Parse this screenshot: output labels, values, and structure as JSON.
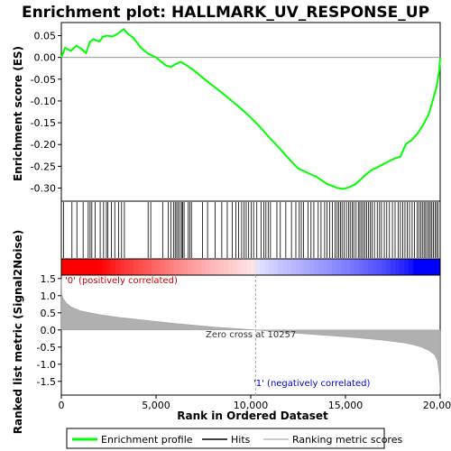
{
  "chart_data": {
    "type": "line",
    "title": "Enrichment plot: HALLMARK_UV_RESPONSE_UP",
    "xlabel": "Rank in Ordered Dataset",
    "xlim": [
      0,
      20000
    ],
    "x_ticks": [
      0,
      5000,
      10000,
      15000,
      20000
    ],
    "x_tick_labels": [
      "0",
      "5,000",
      "10,000",
      "15,000",
      "20,000"
    ],
    "top_panel": {
      "ylabel": "Enrichment score (ES)",
      "ylim": [
        -0.33,
        0.08
      ],
      "y_ticks": [
        0.05,
        0.0,
        -0.05,
        -0.1,
        -0.15,
        -0.2,
        -0.25,
        -0.3
      ],
      "y_tick_labels": [
        "0.05",
        "0.00",
        "-0.05",
        "-0.10",
        "-0.15",
        "-0.20",
        "-0.25",
        "-0.30"
      ],
      "series": [
        {
          "name": "Enrichment profile",
          "color": "#00ff00",
          "x": [
            0,
            200,
            500,
            800,
            1100,
            1300,
            1500,
            1700,
            2000,
            2200,
            2400,
            2700,
            3000,
            3300,
            3500,
            3800,
            4200,
            4600,
            5000,
            5500,
            5800,
            6000,
            6300,
            6600,
            7000,
            7500,
            8000,
            8500,
            9000,
            9500,
            10000,
            10500,
            11000,
            11500,
            12000,
            12500,
            13000,
            13500,
            14000,
            14300,
            14600,
            14900,
            15200,
            15500,
            15800,
            16100,
            16400,
            16700,
            17000,
            17300,
            17600,
            17900,
            18200,
            18500,
            18800,
            19100,
            19400,
            19600,
            19800,
            19950,
            20000
          ],
          "y": [
            0.0,
            0.022,
            0.015,
            0.027,
            0.018,
            0.01,
            0.035,
            0.042,
            0.036,
            0.047,
            0.05,
            0.048,
            0.055,
            0.065,
            0.055,
            0.045,
            0.022,
            0.008,
            0.0,
            -0.018,
            -0.022,
            -0.016,
            -0.01,
            -0.018,
            -0.03,
            -0.048,
            -0.065,
            -0.082,
            -0.1,
            -0.118,
            -0.138,
            -0.16,
            -0.185,
            -0.208,
            -0.232,
            -0.255,
            -0.265,
            -0.275,
            -0.29,
            -0.295,
            -0.3,
            -0.302,
            -0.298,
            -0.292,
            -0.28,
            -0.268,
            -0.258,
            -0.252,
            -0.245,
            -0.238,
            -0.232,
            -0.228,
            -0.198,
            -0.19,
            -0.175,
            -0.155,
            -0.13,
            -0.1,
            -0.07,
            -0.03,
            0.0
          ]
        }
      ]
    },
    "hits_panel": {
      "legend_label": "Hits",
      "hit_ranks": [
        120,
        560,
        820,
        1150,
        1420,
        1520,
        1610,
        1780,
        2050,
        2230,
        2380,
        2460,
        2640,
        2820,
        3020,
        3180,
        3330,
        4580,
        4720,
        5350,
        5650,
        5780,
        5920,
        6010,
        6090,
        6170,
        6260,
        6350,
        6410,
        6480,
        6700,
        6780,
        6870,
        7450,
        7720,
        8120,
        8470,
        8760,
        9020,
        9210,
        9360,
        9520,
        9650,
        9760,
        9890,
        10030,
        10150,
        10320,
        10540,
        10690,
        10800,
        10920,
        11040,
        11380,
        11560,
        11850,
        12150,
        12380,
        12560,
        12670,
        12790,
        13020,
        13180,
        13330,
        13560,
        13710,
        13900,
        14030,
        14160,
        14310,
        14450,
        14560,
        14650,
        14740,
        14820,
        14930,
        15050,
        15160,
        15250,
        15360,
        15440,
        15560,
        15680,
        15760,
        15850,
        15940,
        16030,
        16120,
        16220,
        16310,
        16400,
        16530,
        16680,
        16800,
        16900,
        17050,
        17180,
        17320,
        17480,
        17620,
        17780,
        17900,
        18020,
        18140,
        18260,
        18380,
        18520,
        18640,
        18780,
        18880,
        18980,
        19060,
        19150,
        19230,
        19320,
        19400,
        19480,
        19560,
        19640,
        19730,
        19810,
        19890
      ]
    },
    "metric_panel": {
      "ylabel": "Ranked list metric (Signal2Noise)",
      "legend_label": "Ranking metric scores",
      "ylim": [
        -1.9,
        1.6
      ],
      "y_ticks": [
        1.5,
        1.0,
        0.5,
        0.0,
        -0.5,
        -1.0,
        -1.5
      ],
      "y_tick_labels": [
        "1.5",
        "1.0",
        "0.5",
        "0.0",
        "-0.5",
        "-1.0",
        "-1.5"
      ],
      "x": [
        0,
        30,
        100,
        250,
        500,
        1000,
        2000,
        3000,
        4000,
        5000,
        6000,
        7000,
        8000,
        9000,
        10257,
        11000,
        12000,
        13000,
        14000,
        15000,
        16000,
        17000,
        18000,
        18500,
        19000,
        19400,
        19700,
        19850,
        19950,
        20000
      ],
      "y": [
        1.5,
        1.05,
        0.92,
        0.8,
        0.68,
        0.56,
        0.45,
        0.37,
        0.31,
        0.25,
        0.19,
        0.14,
        0.09,
        0.05,
        0.0,
        -0.04,
        -0.08,
        -0.12,
        -0.16,
        -0.2,
        -0.25,
        -0.3,
        -0.37,
        -0.42,
        -0.5,
        -0.6,
        -0.72,
        -0.9,
        -1.3,
        -1.85
      ],
      "zero_cross_rank": 10257,
      "zero_cross_label": "Zero cross at 10257",
      "positive_label": "'0' (positively correlated)",
      "negative_label": "'1' (negatively correlated)"
    },
    "legend_placement": "bottom"
  }
}
